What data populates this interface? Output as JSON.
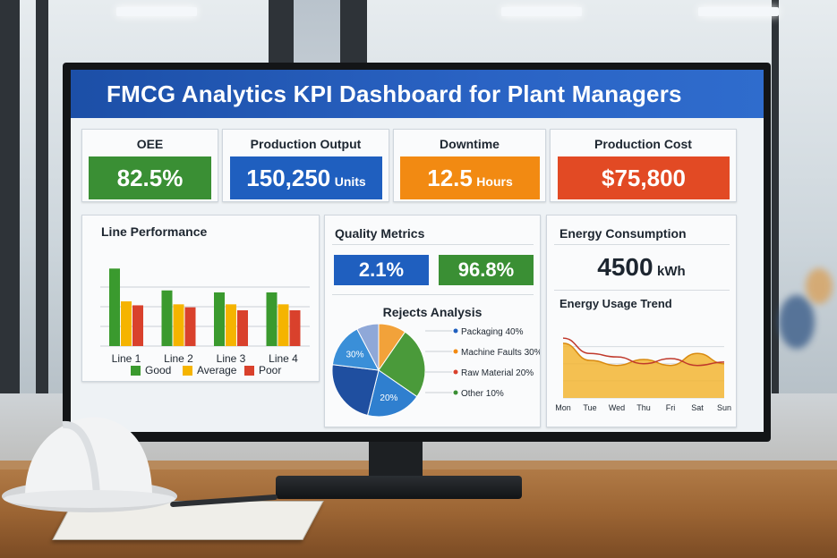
{
  "header": {
    "title": "FMCG Analytics KPI Dashboard for Plant Managers"
  },
  "kpis": [
    {
      "label": "OEE",
      "value": "82.5%",
      "unit": "",
      "color": "#3a8f34"
    },
    {
      "label": "Production Output",
      "value": "150,250",
      "unit": "Units",
      "color": "#1f5fbf"
    },
    {
      "label": "Downtime",
      "value": "12.5",
      "unit": "Hours",
      "color": "#f28a12"
    },
    {
      "label": "Production Cost",
      "value": "$75,800",
      "unit": "",
      "color": "#e24a24"
    }
  ],
  "line_performance": {
    "title": "Line Performance",
    "legend": [
      {
        "label": "Good",
        "color": "#3a9a2e"
      },
      {
        "label": "Average",
        "color": "#f5b400"
      },
      {
        "label": "Poor",
        "color": "#d9412c"
      }
    ]
  },
  "quality": {
    "title": "Quality Metrics",
    "metric_a": {
      "value": "2.1%",
      "color": "#1f5fbf"
    },
    "metric_b": {
      "value": "96.8%",
      "color": "#3a8f34"
    },
    "rejects_title": "Rejects Analysis"
  },
  "energy": {
    "title": "Energy Consumption",
    "value": "4500",
    "unit": "kWh",
    "trend_title": "Energy Usage Trend"
  },
  "chart_data": [
    {
      "type": "bar",
      "categories": [
        "Line 1",
        "Line 2",
        "Line 3",
        "Line 4"
      ],
      "series": [
        {
          "name": "Good",
          "values": [
            78,
            56,
            54,
            54
          ],
          "color": "#3a9a2e"
        },
        {
          "name": "Average",
          "values": [
            45,
            42,
            42,
            42
          ],
          "color": "#f5b400"
        },
        {
          "name": "Poor",
          "values": [
            41,
            39,
            36,
            36
          ],
          "color": "#d9412c"
        }
      ],
      "ylim": [
        0,
        90
      ],
      "grid": true
    },
    {
      "type": "pie",
      "slices": [
        {
          "name": "Packaging 40%",
          "value": 40,
          "color": "#4a9a3a",
          "label": ""
        },
        {
          "name": "Machine Faults 30%",
          "value": 30,
          "color": "#1f4fa0",
          "label": "30%"
        },
        {
          "name": "Raw Material 20%",
          "value": 20,
          "color": "#2f7fcf",
          "label": "20%"
        },
        {
          "name": "Other 10%",
          "value": 10,
          "color": "#f2a23a",
          "label": ""
        }
      ],
      "extra_slice": {
        "value": 8,
        "color": "#8fa8d8"
      }
    },
    {
      "type": "area",
      "x": [
        "Mon",
        "Tue",
        "Wed",
        "Thu",
        "Fri",
        "Sat",
        "Sun"
      ],
      "series": [
        {
          "name": "",
          "values": [
            64,
            44,
            38,
            45,
            38,
            52,
            40
          ],
          "color": "#f2b533"
        },
        {
          "name": "",
          "values": [
            70,
            52,
            48,
            40,
            46,
            38,
            42
          ],
          "color": "#c0392b"
        }
      ],
      "ylim": [
        0,
        90
      ]
    }
  ]
}
